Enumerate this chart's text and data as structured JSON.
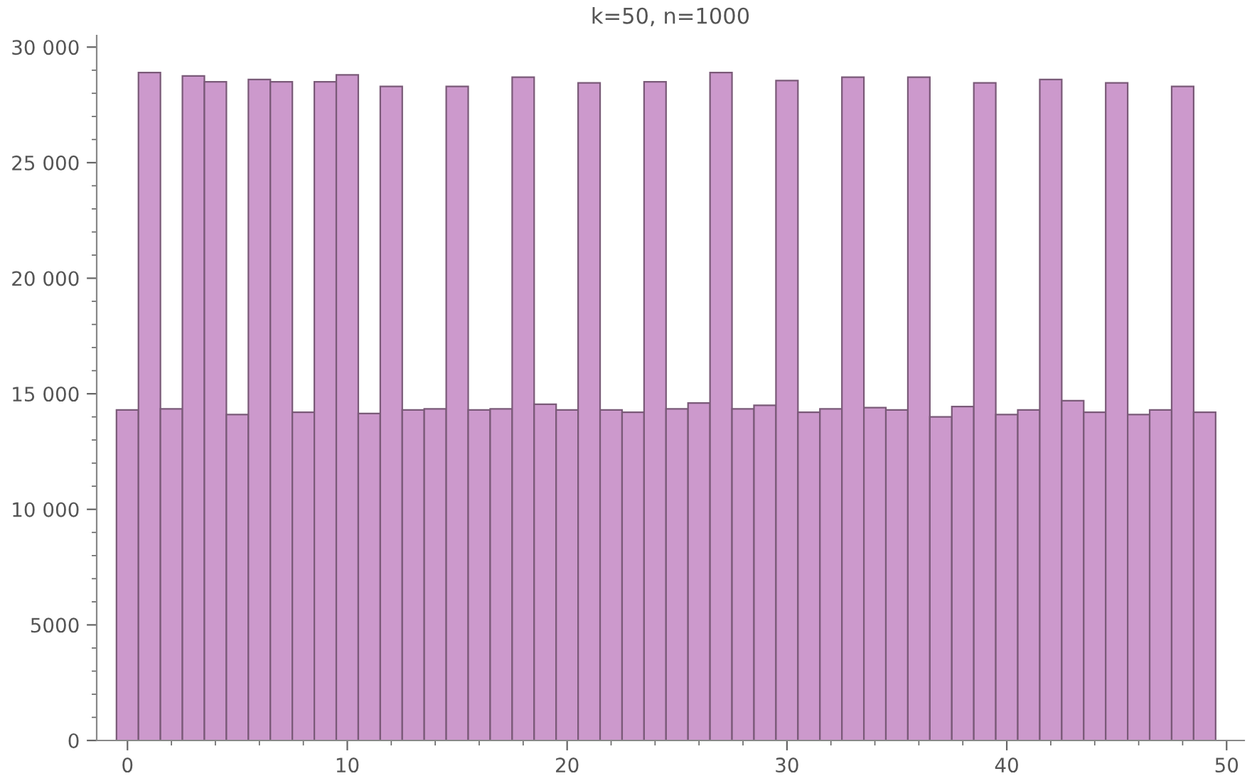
{
  "chart_data": {
    "type": "histogram",
    "title": "k=50, n=1000",
    "bins": [
      -0.5,
      0.5,
      1.5,
      2.5,
      3.5,
      4.5,
      5.5,
      6.5,
      7.5,
      8.5,
      9.5,
      10.5,
      11.5,
      12.5,
      13.5,
      14.5,
      15.5,
      16.5,
      17.5,
      18.5,
      19.5,
      20.5,
      21.5,
      22.5,
      23.5,
      24.5,
      25.5,
      26.5,
      27.5,
      28.5,
      29.5,
      30.5,
      31.5,
      32.5,
      33.5,
      34.5,
      35.5,
      36.5,
      37.5,
      38.5,
      39.5,
      40.5,
      41.5,
      42.5,
      43.5,
      44.5,
      45.5,
      46.5,
      47.5,
      48.5,
      49.5
    ],
    "values": [
      14300,
      28900,
      14350,
      28750,
      28500,
      14100,
      28600,
      28500,
      14200,
      28500,
      28800,
      14150,
      28300,
      14300,
      14350,
      28300,
      14300,
      14350,
      28700,
      14550,
      14300,
      28450,
      14300,
      14200,
      28500,
      14350,
      14600,
      28900,
      14350,
      14500,
      28550,
      14200,
      14350,
      28700,
      14400,
      14300,
      28700,
      14000,
      14450,
      28450,
      14100,
      14300,
      28600,
      14700,
      14200,
      28450,
      14100,
      14300,
      28300,
      14200
    ],
    "color": "#cc99cc",
    "xlim": [
      -1.4,
      50.8
    ],
    "xticks": [
      0,
      10,
      20,
      30,
      40,
      50
    ],
    "ylim": [
      0,
      30500
    ],
    "yticks": [
      0,
      {
        "value": 5000,
        "label": "5000"
      },
      {
        "value": 10000,
        "label": "10 000"
      },
      {
        "value": 15000,
        "label": "15 000"
      },
      {
        "value": 20000,
        "label": "20 000"
      },
      {
        "value": 25000,
        "label": "25 000"
      },
      {
        "value": 30000,
        "label": "30 000"
      }
    ],
    "grid": false,
    "legend": false
  }
}
